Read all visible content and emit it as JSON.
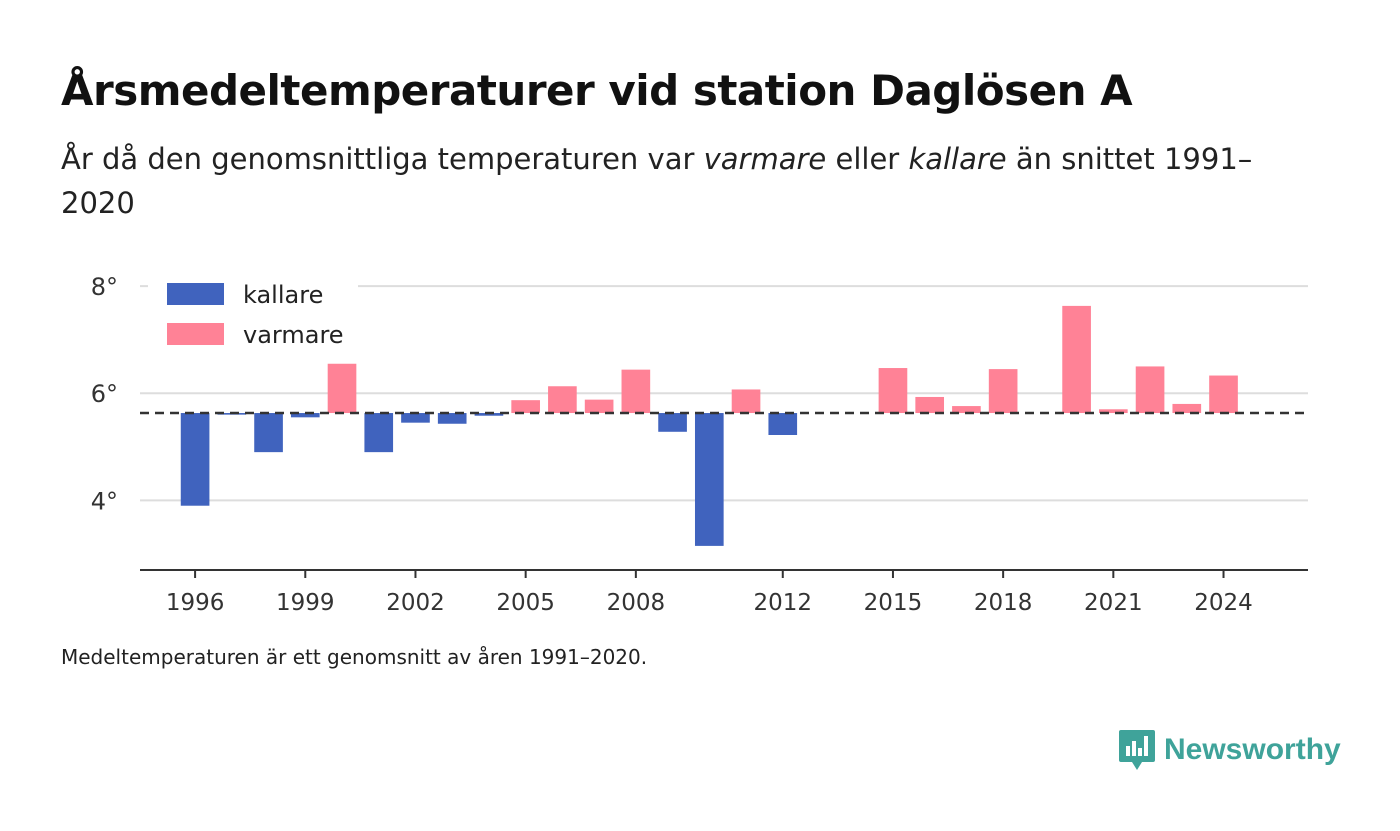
{
  "title": "Årsmedeltemperaturer vid station Daglösen A",
  "subtitle": {
    "part1": "År då den genomsnittliga temperaturen var ",
    "em1": "varmare",
    "part2": " eller ",
    "em2": "kallare",
    "part3": " än snittet 1991–2020"
  },
  "footnote": "Medeltemperaturen är ett genomsnitt av åren 1991–2020.",
  "brand": {
    "name": "Newsworthy",
    "icon": "newsworthy-logo-icon",
    "color": "#3fa39a"
  },
  "chart_data": {
    "type": "bar",
    "baseline": 5.63,
    "baseline_style": "dashed",
    "ylim": [
      2.7,
      8.3
    ],
    "yticks": [
      4,
      6,
      8
    ],
    "ytick_labels": [
      "4°",
      "6°",
      "8°"
    ],
    "xlim": [
      1994.5,
      2026.3
    ],
    "xticks": [
      1996,
      1999,
      2002,
      2005,
      2008,
      2012,
      2015,
      2018,
      2021,
      2024
    ],
    "xtick_labels": [
      "1996",
      "1999",
      "2002",
      "2005",
      "2008",
      "2012",
      "2015",
      "2018",
      "2021",
      "2024"
    ],
    "grid": true,
    "legend_position": "top-left",
    "legend": [
      {
        "label": "kallare",
        "color": "#4063be"
      },
      {
        "label": "varmare",
        "color": "#ff8296"
      }
    ],
    "colors": {
      "colder": "#4063be",
      "warmer": "#ff8296"
    },
    "x": [
      1996,
      1997,
      1998,
      1999,
      2000,
      2001,
      2002,
      2003,
      2004,
      2005,
      2006,
      2007,
      2008,
      2009,
      2010,
      2011,
      2012,
      2015,
      2016,
      2017,
      2018,
      2020,
      2021,
      2022,
      2023,
      2024
    ],
    "values": [
      3.9,
      5.6,
      4.9,
      5.55,
      6.55,
      4.9,
      5.45,
      5.43,
      5.58,
      5.87,
      6.13,
      5.88,
      6.44,
      5.28,
      3.15,
      6.07,
      5.22,
      6.47,
      5.93,
      5.76,
      6.45,
      7.63,
      5.7,
      6.5,
      5.8,
      6.33
    ]
  }
}
